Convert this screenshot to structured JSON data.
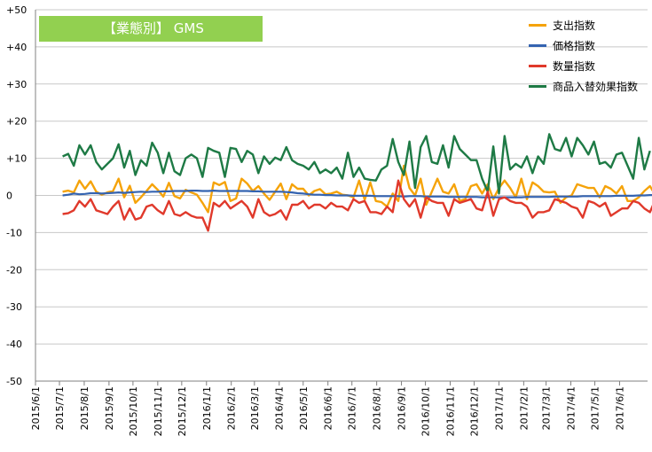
{
  "chart_data": {
    "type": "line",
    "title": "【業態別】 GMS",
    "title_bg_color": "#92d050",
    "ylim": [
      -50,
      50
    ],
    "yticks": [
      "-50",
      "-40",
      "-30",
      "-20",
      "-10",
      "0",
      "+10",
      "+20",
      "+30",
      "+40",
      "+50"
    ],
    "ytick_values": [
      -50,
      -40,
      -30,
      -20,
      -10,
      0,
      10,
      20,
      30,
      40,
      50
    ],
    "x_range": [
      "2015-06-01",
      "2017-07-06"
    ],
    "xticks": [
      "2015/6/1",
      "2015/7/1",
      "2015/8/1",
      "2015/9/1",
      "2015/10/1",
      "2015/11/1",
      "2015/12/1",
      "2016/1/1",
      "2016/2/1",
      "2016/3/1",
      "2016/4/1",
      "2016/5/1",
      "2016/6/1",
      "2016/7/1",
      "2016/8/1",
      "2016/9/1",
      "2016/10/1",
      "2016/11/1",
      "2016/12/1",
      "2017/1/1",
      "2017/2/1",
      "2017/3/1",
      "2017/4/1",
      "2017/5/1",
      "2017/6/1"
    ],
    "x_start": "2015-07-05",
    "x_step_days": 7,
    "grid": true,
    "legend_position": "top-right",
    "series": [
      {
        "name": "支出指数",
        "color": "#f5a30a",
        "values": [
          1.0,
          1.3,
          0.8,
          4.0,
          1.8,
          3.8,
          1.0,
          0.2,
          0.8,
          1.2,
          4.5,
          -0.5,
          2.6,
          -2.0,
          -0.5,
          1.2,
          3.0,
          1.5,
          -0.3,
          3.4,
          -0.2,
          -0.8,
          1.5,
          0.8,
          0.2,
          -2.0,
          -4.5,
          3.5,
          2.8,
          3.6,
          -1.5,
          -0.8,
          4.5,
          3.2,
          1.2,
          2.5,
          0.5,
          -1.2,
          1.0,
          3.2,
          -1.0,
          3.0,
          1.8,
          1.8,
          0.0,
          1.2,
          1.7,
          0.3,
          0.5,
          1.0,
          0.2,
          0.0,
          -0.5,
          4.0,
          -1.2,
          3.5,
          -1.5,
          -1.8,
          -3.0,
          0.5,
          -1.5,
          8.0,
          2.0,
          0.0,
          4.5,
          -2.5,
          1.0,
          4.5,
          1.0,
          0.5,
          3.0,
          -1.5,
          -1.0,
          2.5,
          3.0,
          0.5,
          3.0,
          -1.0,
          2.0,
          4.0,
          2.0,
          -0.5,
          4.5,
          -1.0,
          3.5,
          2.5,
          1.0,
          0.8,
          1.0,
          -2.0,
          -0.5,
          0.0,
          3.0,
          2.5,
          2.0,
          2.0,
          -0.5,
          2.5,
          1.8,
          0.5,
          2.5,
          -1.5,
          -1.5,
          -0.5,
          1.2,
          2.5,
          0.0,
          -1.5,
          4.0,
          -2.0,
          1.5
        ]
      },
      {
        "name": "価格指数",
        "color": "#3463b0",
        "values": [
          0.0,
          0.2,
          0.5,
          0.3,
          0.4,
          0.6,
          0.6,
          0.5,
          0.6,
          0.7,
          0.8,
          0.7,
          0.8,
          0.9,
          1.0,
          0.9,
          1.0,
          1.0,
          1.1,
          1.1,
          1.2,
          1.2,
          1.2,
          1.3,
          1.3,
          1.2,
          1.2,
          1.3,
          1.2,
          1.2,
          1.2,
          1.2,
          1.2,
          1.2,
          1.1,
          1.1,
          1.0,
          1.0,
          1.0,
          1.0,
          0.9,
          0.8,
          0.6,
          0.5,
          0.3,
          0.2,
          0.2,
          0.1,
          0.1,
          0.0,
          0.0,
          0.0,
          -0.1,
          -0.1,
          -0.1,
          -0.1,
          -0.2,
          -0.2,
          -0.2,
          -0.2,
          -0.2,
          -0.3,
          -0.2,
          -0.2,
          -0.2,
          -0.3,
          -0.3,
          -0.3,
          -0.3,
          -0.4,
          -0.4,
          -0.4,
          -0.4,
          -0.4,
          -0.4,
          -0.5,
          -0.5,
          -0.5,
          -0.5,
          -0.5,
          -0.5,
          -0.5,
          -0.5,
          -0.4,
          -0.4,
          -0.4,
          -0.4,
          -0.4,
          -0.3,
          -0.3,
          -0.3,
          -0.3,
          -0.3,
          -0.2,
          -0.2,
          -0.2,
          -0.2,
          -0.2,
          -0.2,
          -0.1,
          -0.1,
          -0.1,
          -0.1,
          0.0,
          0.0,
          0.1,
          0.1,
          0.1,
          0.1,
          0.0,
          0.0
        ]
      },
      {
        "name": "数量指数",
        "color": "#e0392b",
        "values": [
          -5.0,
          -4.8,
          -4.0,
          -1.5,
          -3.0,
          -1.0,
          -4.0,
          -4.5,
          -5.0,
          -3.0,
          -1.5,
          -6.5,
          -3.5,
          -6.5,
          -6.0,
          -3.0,
          -2.5,
          -4.0,
          -5.0,
          -1.5,
          -5.0,
          -5.5,
          -4.5,
          -5.5,
          -6.0,
          -6.0,
          -9.5,
          -2.0,
          -3.0,
          -1.5,
          -3.5,
          -2.5,
          -1.5,
          -3.0,
          -6.0,
          -1.0,
          -4.5,
          -5.5,
          -5.0,
          -4.0,
          -6.5,
          -2.5,
          -2.5,
          -1.5,
          -3.5,
          -2.5,
          -2.5,
          -3.5,
          -2.0,
          -3.0,
          -3.0,
          -4.0,
          -1.0,
          -2.0,
          -1.5,
          -4.5,
          -4.5,
          -5.0,
          -3.0,
          -4.5,
          4.0,
          -1.0,
          -3.0,
          -1.0,
          -6.0,
          -0.5,
          -1.5,
          -2.0,
          -2.0,
          -5.5,
          -1.0,
          -2.0,
          -1.5,
          -1.0,
          -3.5,
          -4.0,
          1.0,
          -5.5,
          -1.0,
          -0.5,
          -1.5,
          -2.0,
          -2.0,
          -3.0,
          -6.0,
          -4.5,
          -4.5,
          -4.0,
          -1.0,
          -1.5,
          -2.0,
          -3.0,
          -3.5,
          -6.0,
          -1.5,
          -2.0,
          -3.0,
          -2.0,
          -5.5,
          -4.5,
          -3.5,
          -3.5,
          -1.5,
          -2.0,
          -3.5,
          -4.5,
          -1.0,
          -5.5,
          -2.5
        ]
      },
      {
        "name": "商品入替効果指数",
        "color": "#1e7a45",
        "values": [
          10.5,
          11.2,
          8.0,
          13.5,
          11.0,
          13.5,
          9.0,
          7.0,
          8.5,
          10.0,
          13.8,
          7.5,
          12.0,
          5.5,
          9.5,
          8.0,
          14.2,
          11.5,
          6.0,
          11.5,
          6.5,
          5.5,
          10.0,
          11.0,
          10.0,
          5.0,
          12.8,
          12.0,
          11.5,
          5.0,
          12.8,
          12.5,
          9.0,
          12.0,
          11.0,
          6.0,
          10.5,
          8.5,
          10.2,
          9.5,
          13.0,
          9.5,
          8.5,
          8.0,
          7.0,
          9.0,
          6.0,
          7.0,
          6.0,
          7.5,
          4.5,
          11.5,
          5.0,
          7.5,
          4.5,
          4.2,
          4.0,
          7.0,
          8.0,
          15.2,
          9.0,
          5.5,
          14.5,
          2.0,
          13.0,
          16.0,
          9.0,
          8.5,
          13.5,
          7.5,
          16.0,
          12.5,
          11.0,
          9.5,
          9.5,
          4.5,
          1.0,
          13.2,
          0.5,
          16.0,
          7.0,
          8.5,
          7.5,
          10.5,
          6.0,
          10.5,
          8.5,
          16.5,
          12.5,
          12.0,
          15.5,
          10.5,
          15.5,
          13.5,
          11.0,
          14.5,
          8.5,
          9.0,
          7.5,
          11.0,
          11.5,
          8.0,
          4.5,
          15.5,
          7.0,
          12.0
        ]
      }
    ]
  }
}
